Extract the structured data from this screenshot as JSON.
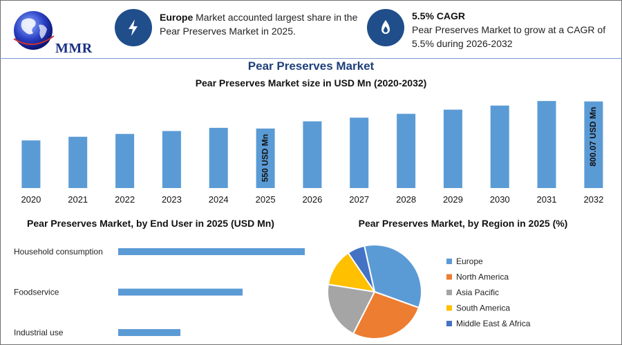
{
  "brand": {
    "logo_text": "MMR"
  },
  "info_cards": [
    {
      "icon": "lightning-bolt-icon",
      "bold": "Europe",
      "text": " Market accounted largest share in the Pear Preserves Market in 2025."
    },
    {
      "icon": "flame-drop-icon",
      "bold": "5.5% CAGR",
      "text": "Pear Preserves Market to grow at a CAGR of 5.5% during 2026-2032"
    }
  ],
  "title": "Pear Preserves Market",
  "colors": {
    "bar": "#5b9bd5",
    "accent": "#1f4e8a"
  },
  "chart_data": [
    {
      "type": "bar",
      "title": "Pear Preserves Market size in USD Mn (2020-2032)",
      "categories": [
        "2020",
        "2021",
        "2022",
        "2023",
        "2024",
        "2025",
        "2026",
        "2027",
        "2028",
        "2029",
        "2030",
        "2031",
        "2032"
      ],
      "values": [
        440,
        474,
        500,
        527,
        556,
        550,
        616,
        650,
        686,
        724,
        762,
        804,
        800.07
      ],
      "ylim": [
        0,
        830
      ],
      "data_labels": [
        {
          "category": "2025",
          "text": "550 USD Mn"
        },
        {
          "category": "2032",
          "text": "800.07 USD Mn"
        }
      ]
    },
    {
      "type": "bar",
      "orientation": "horizontal",
      "title": "Pear Preserves Market, by End User in 2025 (USD Mn)",
      "categories": [
        "Household consumption",
        "Foodservice",
        "Industrial use"
      ],
      "values": [
        300,
        200,
        100
      ],
      "xlim": [
        0,
        300
      ]
    },
    {
      "type": "pie",
      "title": "Pear Preserves Market, by Region in 2025 (%)",
      "labels": [
        "Europe",
        "North America",
        "Asia Pacific",
        "South America",
        "Middle East & Africa"
      ],
      "values": [
        34,
        27,
        20,
        13,
        6
      ],
      "colors": [
        "#5b9bd5",
        "#ed7d31",
        "#a5a5a5",
        "#ffc000",
        "#4472c4"
      ],
      "legend": "right"
    }
  ]
}
